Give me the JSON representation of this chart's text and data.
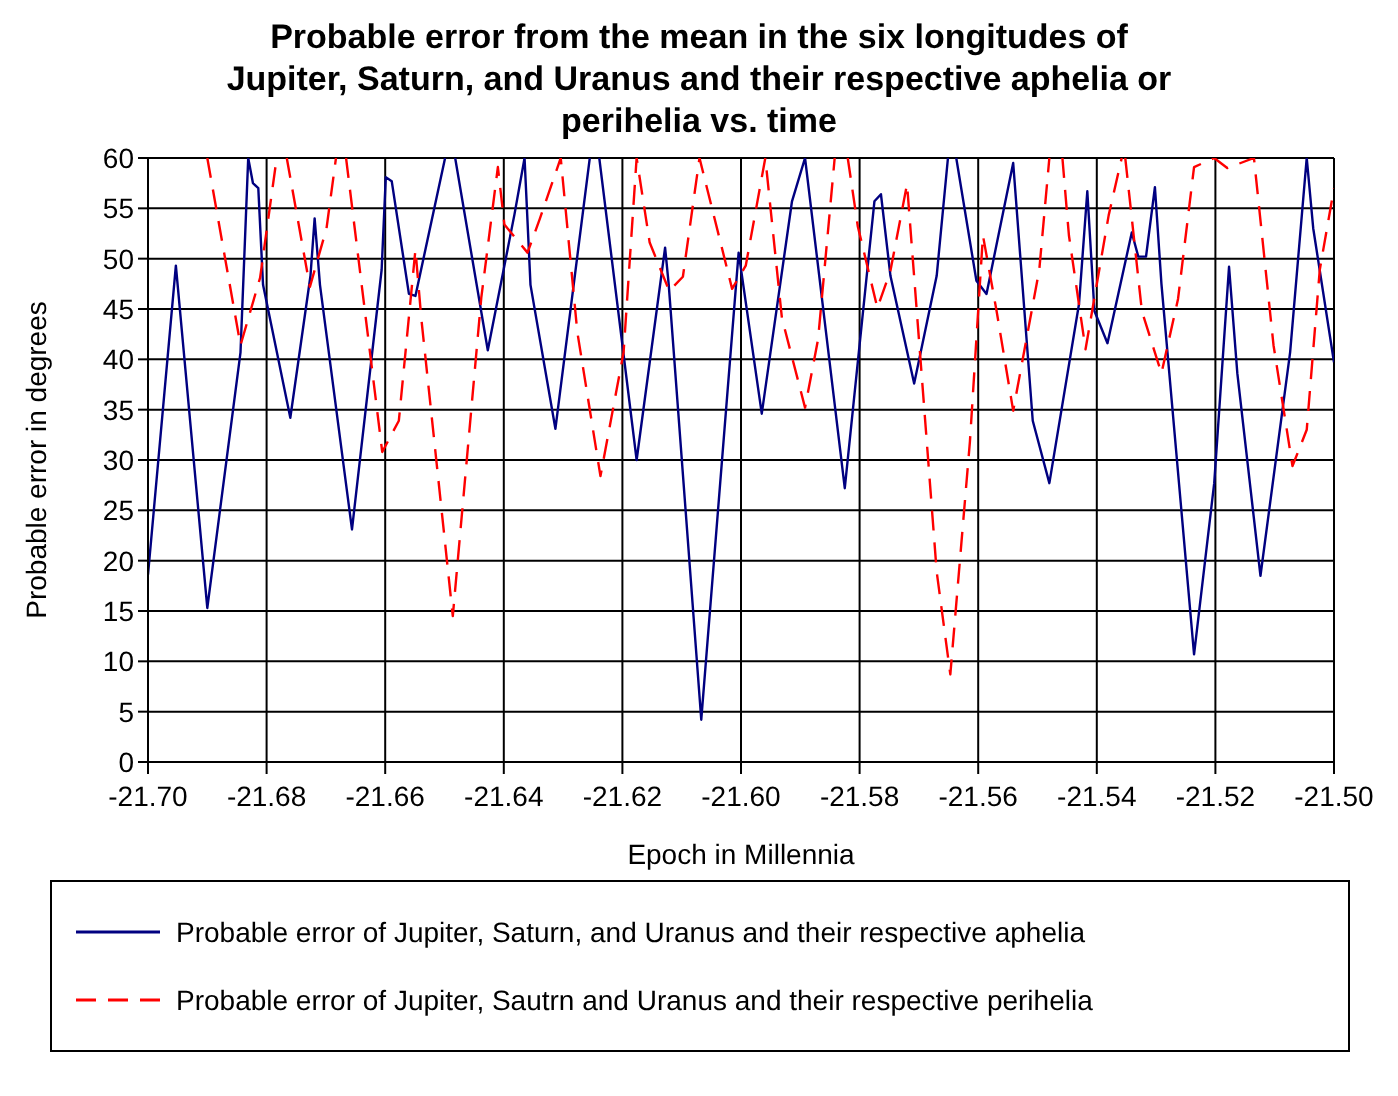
{
  "chart_data": {
    "type": "line",
    "title": "Probable error from the mean in the six longitudes of Jupiter, Saturn, and Uranus and their respective aphelia or perihelia vs. time",
    "xlabel": "Epoch in Millennia",
    "ylabel": "Probable error in degrees",
    "xlim": [
      -21.7,
      -21.5
    ],
    "xticks": [
      {
        "value": -21.7,
        "label": "-21.70"
      },
      -21.68,
      -21.66,
      -21.64,
      -21.62,
      {
        "value": -21.6,
        "label": "-21.60"
      },
      -21.58,
      -21.56,
      -21.54,
      -21.52,
      {
        "value": -21.5,
        "label": "-21.50"
      }
    ],
    "ylim": [
      0,
      60
    ],
    "yticks": [
      0,
      5,
      10,
      15,
      20,
      25,
      30,
      35,
      40,
      45,
      50,
      55,
      60
    ],
    "grid": true,
    "legend": "bottom",
    "marker": "none",
    "series": [
      {
        "name": "Probable error of Jupiter, Saturn, and Uranus and their respective aphelia",
        "color": "#000080",
        "line_style": "solid",
        "x": [
          -21.7,
          -21.6953,
          -21.69,
          -21.6844,
          -21.6831,
          -21.6823,
          -21.6814,
          -21.6806,
          -21.676,
          -21.6726,
          -21.6719,
          -21.671,
          -21.6656,
          -21.6606,
          -21.6599,
          -21.6589,
          -21.656,
          -21.6549,
          -21.6499,
          -21.649,
          -21.6482,
          -21.6427,
          -21.6382,
          -21.6365,
          -21.6355,
          -21.6313,
          -21.6255,
          -21.6247,
          -21.6239,
          -21.6176,
          -21.6128,
          -21.6122,
          -21.6067,
          -21.6004,
          -21.5965,
          -21.5914,
          -21.5892,
          -21.5825,
          -21.5775,
          -21.5764,
          -21.5748,
          -21.5708,
          -21.567,
          -21.5651,
          -21.5644,
          -21.5637,
          -21.5603,
          -21.5586,
          -21.5541,
          -21.5508,
          -21.548,
          -21.543,
          -21.5416,
          -21.5404,
          -21.5382,
          -21.5341,
          -21.533,
          -21.5317,
          -21.5302,
          -21.5291,
          -21.5236,
          -21.5202,
          -21.5177,
          -21.5163,
          -21.5124,
          -21.5074,
          -21.5046,
          -21.5035,
          -21.5
        ],
        "values": [
          18.6,
          49.3,
          15.3,
          40.7,
          60,
          57.5,
          57,
          47.4,
          34.2,
          48.3,
          54,
          47.4,
          23.1,
          48.9,
          58.1,
          57.7,
          46.5,
          46.3,
          60,
          null,
          60,
          40.9,
          54.4,
          60,
          47.4,
          33.1,
          60,
          null,
          60,
          30,
          51.1,
          47.5,
          4.2,
          50.6,
          34.6,
          55.7,
          60,
          27.2,
          55.7,
          56.4,
          48.3,
          37.6,
          48.3,
          60,
          null,
          60,
          47.8,
          46.5,
          59.5,
          33.9,
          27.7,
          45.5,
          56.7,
          44.8,
          41.6,
          52.6,
          50.2,
          50.2,
          57.1,
          47.5,
          10.7,
          27.7,
          49.2,
          38.6,
          18.5,
          40.7,
          60,
          53,
          39.7
        ]
      },
      {
        "name": "Probable error of Jupiter, Sautrn and Uranus and their respective perihelia",
        "color": "#ff0000",
        "line_style": "dashed",
        "x": [
          -21.69,
          -21.6844,
          -21.6811,
          -21.6783,
          -21.6775,
          -21.6766,
          -21.6727,
          -21.6699,
          -21.6683,
          -21.6675,
          -21.6666,
          -21.6605,
          -21.6577,
          -21.6549,
          -21.6539,
          -21.6486,
          -21.6438,
          -21.641,
          -21.6399,
          -21.636,
          -21.6339,
          -21.6304,
          -21.6276,
          -21.6237,
          -21.6198,
          -21.6176,
          -21.6154,
          -21.6121,
          -21.6098,
          -21.607,
          -21.6015,
          -21.5992,
          -21.5959,
          -21.5931,
          -21.5892,
          -21.587,
          -21.5842,
          -21.5831,
          -21.582,
          -21.5803,
          -21.577,
          -21.5748,
          -21.572,
          -21.5692,
          -21.567,
          -21.5647,
          -21.5614,
          -21.5592,
          -21.5569,
          -21.5541,
          -21.5497,
          -21.548,
          -21.5469,
          -21.5458,
          -21.5447,
          -21.5419,
          -21.538,
          -21.5358,
          -21.5355,
          -21.5352,
          -21.5324,
          -21.5291,
          -21.5263,
          -21.5236,
          -21.5202,
          -21.518,
          -21.5135,
          -21.5102,
          -21.507,
          -21.5046,
          -21.5024,
          -21.5
        ],
        "values": [
          60,
          41.4,
          48.1,
          60,
          null,
          60,
          47.2,
          53,
          60,
          null,
          60,
          30.8,
          33.9,
          50.9,
          44,
          14.5,
          46.1,
          59.1,
          53.4,
          50.6,
          54,
          60,
          42.7,
          28.4,
          40.7,
          60,
          51.6,
          46.8,
          48.2,
          60,
          47,
          49.3,
          60,
          44.1,
          35.2,
          42,
          60,
          null,
          60,
          53.2,
          45.1,
          48.8,
          57.4,
          35.9,
          18.9,
          8.7,
          31.8,
          52.3,
          44.8,
          34.9,
          48.9,
          60,
          null,
          60,
          52.3,
          41,
          54.3,
          60,
          null,
          60,
          44.8,
          38.6,
          46,
          59.1,
          60,
          59,
          60,
          41.4,
          29.4,
          33,
          48.9,
          57
        ]
      }
    ]
  }
}
